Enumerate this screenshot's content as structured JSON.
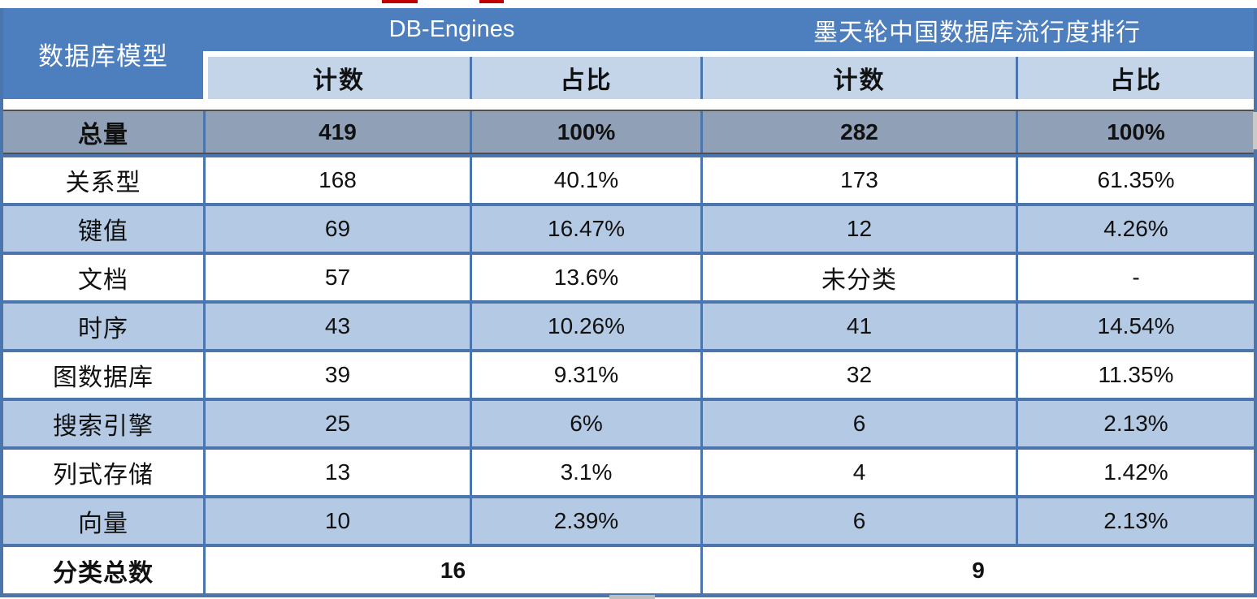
{
  "colors": {
    "header_blue": "#4d7ebd",
    "border_blue": "#4a76ad",
    "subheader_light_blue": "#c4d5ea",
    "alt_row_light_blue": "#b4c9e3",
    "total_row_gray": "#90a0b7",
    "artifact_red": "#c00000"
  },
  "header": {
    "corner": "数据库模型",
    "group1": "DB-Engines",
    "group2": "墨天轮中国数据库流行度排行",
    "sub": [
      "计数",
      "占比",
      "计数",
      "占比"
    ]
  },
  "chart_data": {
    "type": "table",
    "title": "",
    "column_groups": [
      "DB-Engines",
      "墨天轮中国数据库流行度排行"
    ],
    "columns": [
      "数据库模型",
      "计数",
      "占比",
      "计数",
      "占比"
    ],
    "rows": [
      [
        "总量",
        "419",
        "100%",
        "282",
        "100%"
      ],
      [
        "关系型",
        "168",
        "40.1%",
        "173",
        "61.35%"
      ],
      [
        "键值",
        "69",
        "16.47%",
        "12",
        "4.26%"
      ],
      [
        "文档",
        "57",
        "13.6%",
        "未分类",
        "-"
      ],
      [
        "时序",
        "43",
        "10.26%",
        "41",
        "14.54%"
      ],
      [
        "图数据库",
        "39",
        "9.31%",
        "32",
        "11.35%"
      ],
      [
        "搜索引擎",
        "25",
        "6%",
        "6",
        "2.13%"
      ],
      [
        "列式存储",
        "13",
        "3.1%",
        "4",
        "1.42%"
      ],
      [
        "向量",
        "10",
        "2.39%",
        "6",
        "2.13%"
      ]
    ],
    "footer_row": {
      "label": "分类总数",
      "db_engines_total": "16",
      "modb_total": "9"
    }
  }
}
